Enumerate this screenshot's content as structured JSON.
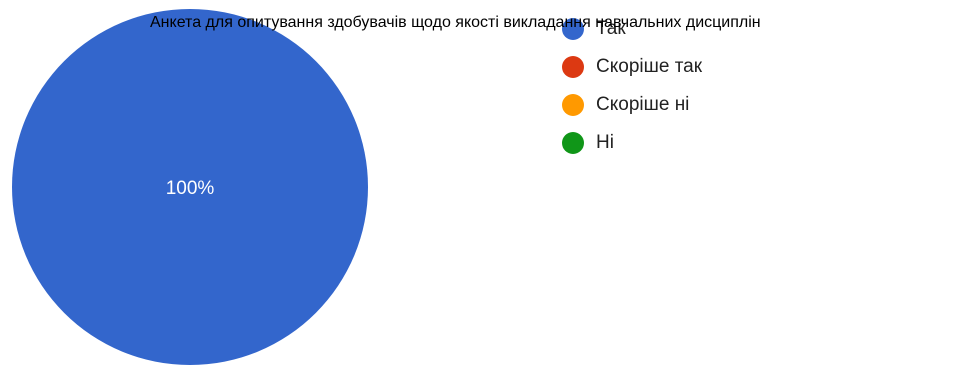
{
  "chart_data": {
    "type": "pie",
    "title": "Анкета для опитування здобувачів щодо якості викладання навчальних дисциплін",
    "categories": [
      "Так",
      "Скоріше так",
      "Скоріше ні",
      "Ні"
    ],
    "values": [
      100,
      0,
      0,
      0
    ],
    "colors": [
      "#3366cc",
      "#dc3912",
      "#ff9900",
      "#109618"
    ],
    "slice_labels": [
      "100%"
    ],
    "legend_position": "right"
  }
}
